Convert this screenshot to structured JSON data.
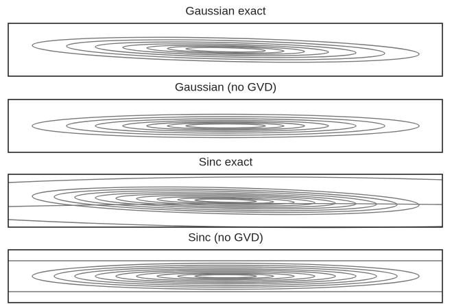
{
  "panels": [
    {
      "title": "Gaussian exact"
    },
    {
      "title": "Gaussian (no GVD)"
    },
    {
      "title": "Sinc exact"
    },
    {
      "title": "Sinc (no GVD)"
    }
  ]
}
